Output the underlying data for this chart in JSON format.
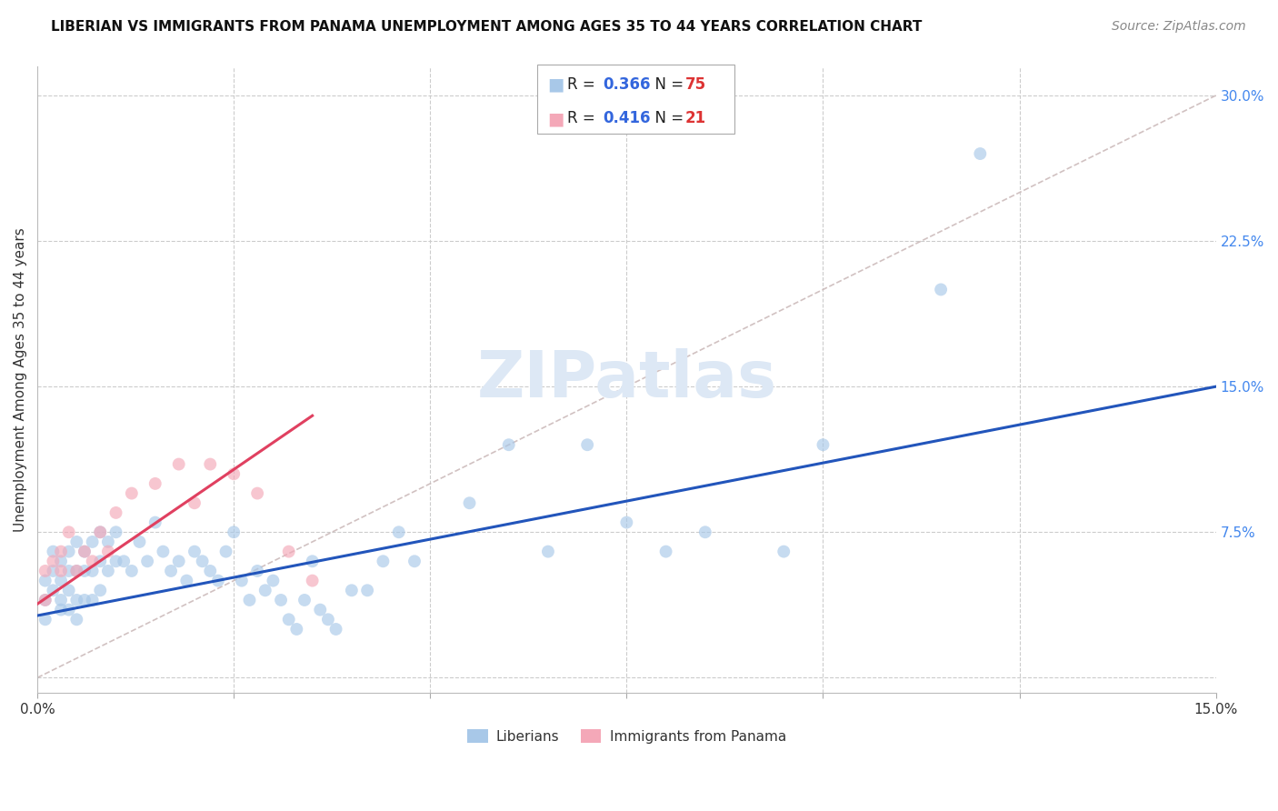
{
  "title": "LIBERIAN VS IMMIGRANTS FROM PANAMA UNEMPLOYMENT AMONG AGES 35 TO 44 YEARS CORRELATION CHART",
  "source": "Source: ZipAtlas.com",
  "ylabel": "Unemployment Among Ages 35 to 44 years",
  "xlim": [
    0.0,
    0.15
  ],
  "ylim": [
    -0.008,
    0.315
  ],
  "xtick_positions": [
    0.0,
    0.025,
    0.05,
    0.075,
    0.1,
    0.125,
    0.15
  ],
  "xtick_labels": [
    "0.0%",
    "",
    "",
    "",
    "",
    "",
    "15.0%"
  ],
  "yticks_right": [
    0.0,
    0.075,
    0.15,
    0.225,
    0.3
  ],
  "ytick_labels_right": [
    "",
    "7.5%",
    "15.0%",
    "22.5%",
    "30.0%"
  ],
  "liberian_color": "#a8c8e8",
  "panama_color": "#f4a8b8",
  "liberian_line_color": "#2255bb",
  "panama_line_color": "#e04060",
  "diagonal_color": "#ccbbbb",
  "R_liberian": "0.366",
  "N_liberian": "75",
  "R_panama": "0.416",
  "N_panama": "21",
  "legend_R_color": "#3366dd",
  "legend_N_color": "#dd3333",
  "background_color": "#ffffff",
  "grid_color": "#cccccc",
  "liberian_x": [
    0.001,
    0.001,
    0.001,
    0.002,
    0.002,
    0.002,
    0.003,
    0.003,
    0.003,
    0.003,
    0.004,
    0.004,
    0.004,
    0.004,
    0.005,
    0.005,
    0.005,
    0.005,
    0.006,
    0.006,
    0.006,
    0.007,
    0.007,
    0.007,
    0.008,
    0.008,
    0.008,
    0.009,
    0.009,
    0.01,
    0.01,
    0.011,
    0.012,
    0.013,
    0.014,
    0.015,
    0.016,
    0.017,
    0.018,
    0.019,
    0.02,
    0.021,
    0.022,
    0.023,
    0.024,
    0.025,
    0.026,
    0.027,
    0.028,
    0.029,
    0.03,
    0.031,
    0.032,
    0.033,
    0.034,
    0.035,
    0.036,
    0.037,
    0.038,
    0.04,
    0.042,
    0.044,
    0.046,
    0.048,
    0.055,
    0.06,
    0.065,
    0.07,
    0.075,
    0.08,
    0.085,
    0.095,
    0.1,
    0.115,
    0.12
  ],
  "liberian_y": [
    0.04,
    0.05,
    0.03,
    0.055,
    0.065,
    0.045,
    0.06,
    0.05,
    0.04,
    0.035,
    0.065,
    0.055,
    0.045,
    0.035,
    0.07,
    0.055,
    0.04,
    0.03,
    0.065,
    0.055,
    0.04,
    0.07,
    0.055,
    0.04,
    0.075,
    0.06,
    0.045,
    0.07,
    0.055,
    0.075,
    0.06,
    0.06,
    0.055,
    0.07,
    0.06,
    0.08,
    0.065,
    0.055,
    0.06,
    0.05,
    0.065,
    0.06,
    0.055,
    0.05,
    0.065,
    0.075,
    0.05,
    0.04,
    0.055,
    0.045,
    0.05,
    0.04,
    0.03,
    0.025,
    0.04,
    0.06,
    0.035,
    0.03,
    0.025,
    0.045,
    0.045,
    0.06,
    0.075,
    0.06,
    0.09,
    0.12,
    0.065,
    0.12,
    0.08,
    0.065,
    0.075,
    0.065,
    0.12,
    0.2,
    0.27
  ],
  "panama_x": [
    0.001,
    0.001,
    0.002,
    0.003,
    0.003,
    0.004,
    0.005,
    0.006,
    0.007,
    0.008,
    0.009,
    0.01,
    0.012,
    0.015,
    0.018,
    0.02,
    0.022,
    0.025,
    0.028,
    0.032,
    0.035
  ],
  "panama_y": [
    0.055,
    0.04,
    0.06,
    0.065,
    0.055,
    0.075,
    0.055,
    0.065,
    0.06,
    0.075,
    0.065,
    0.085,
    0.095,
    0.1,
    0.11,
    0.09,
    0.11,
    0.105,
    0.095,
    0.065,
    0.05
  ],
  "lib_line_x0": 0.0,
  "lib_line_y0": 0.032,
  "lib_line_x1": 0.15,
  "lib_line_y1": 0.15,
  "pan_line_x0": 0.0,
  "pan_line_y0": 0.038,
  "pan_line_x1": 0.035,
  "pan_line_y1": 0.135,
  "watermark_text": "ZIPatlas",
  "watermark_color": "#dde8f5",
  "title_fontsize": 11,
  "source_fontsize": 10,
  "axis_label_fontsize": 11,
  "tick_fontsize": 11,
  "legend_fontsize": 12,
  "scatter_size": 100,
  "scatter_alpha": 0.65
}
